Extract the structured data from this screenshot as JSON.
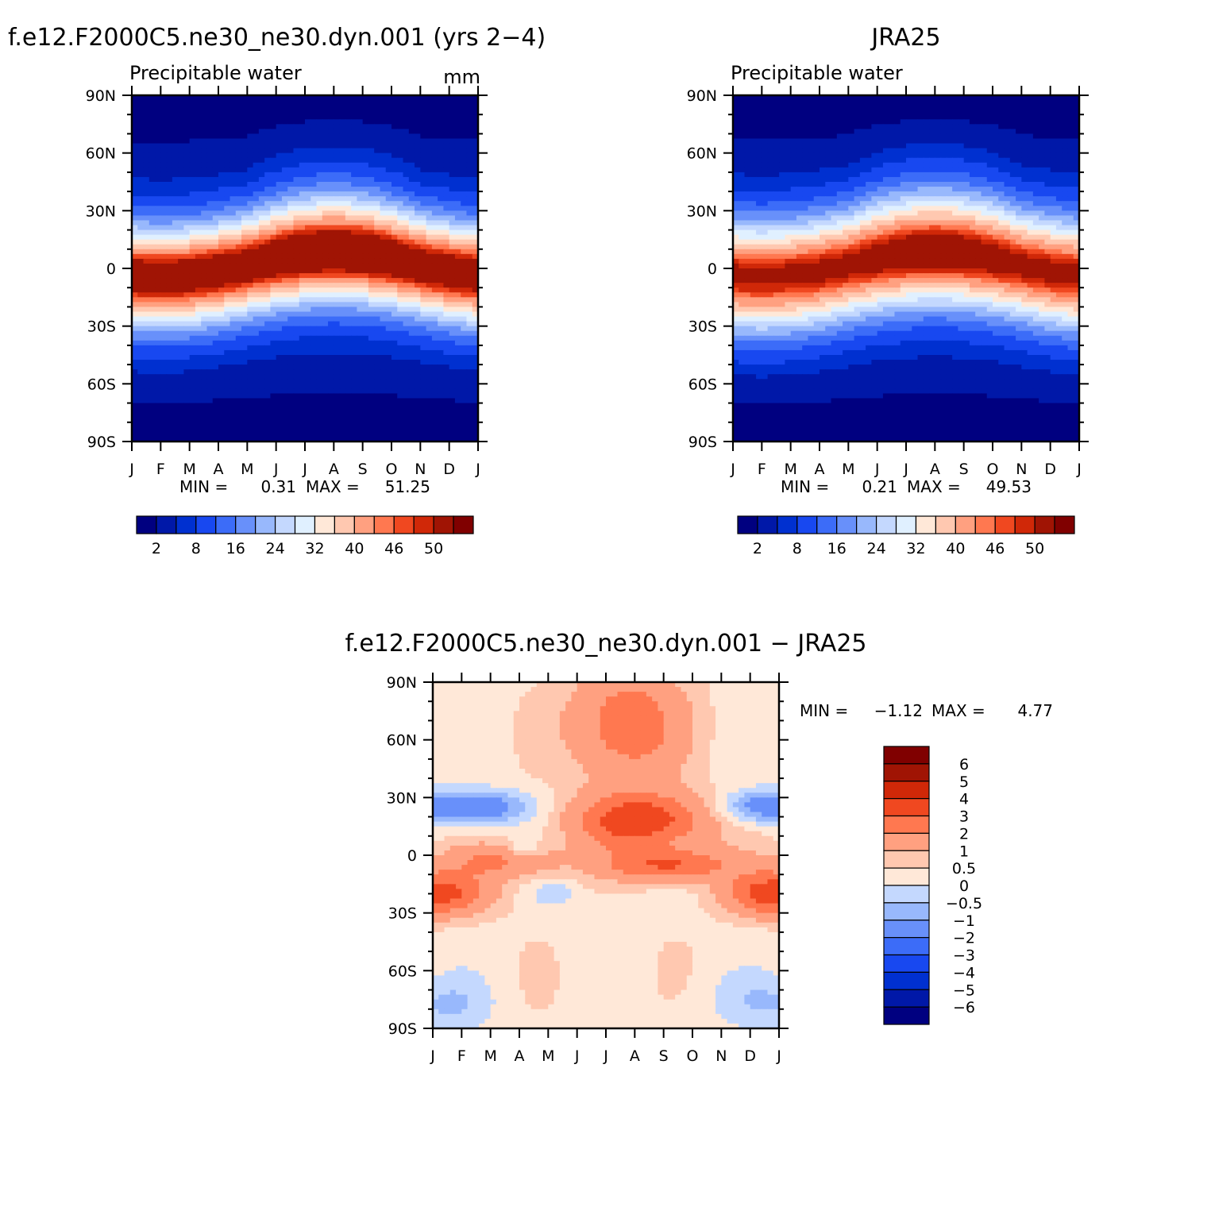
{
  "months": [
    "J",
    "F",
    "M",
    "A",
    "M",
    "J",
    "J",
    "A",
    "S",
    "O",
    "N",
    "D",
    "J"
  ],
  "lat_ticks": [
    "90N",
    "60N",
    "30N",
    "0",
    "30S",
    "60S",
    "90S"
  ],
  "lat_values": [
    90,
    60,
    30,
    0,
    -30,
    -60,
    -90
  ],
  "chart_data": [
    {
      "type": "heatmap",
      "title": "f.e12.F2000C5.ne30_ne30.dyn.001 (yrs 2−4)",
      "subtitle": "Precipitable water",
      "units": "mm",
      "min_label": "MIN =",
      "min_value": "0.31",
      "max_label": "MAX =",
      "max_value": "51.25",
      "x": "month",
      "y": "latitude",
      "ylim": [
        -90,
        90
      ],
      "itcz": {
        "base": 2,
        "amp": 8,
        "peak": 51.25,
        "width": 20
      },
      "levels": [
        2,
        5,
        8,
        12,
        16,
        20,
        24,
        28,
        32,
        36,
        40,
        44,
        46,
        48,
        50
      ],
      "colorbar_labels": [
        "2",
        "8",
        "16",
        "24",
        "32",
        "40",
        "46",
        "50"
      ],
      "colors": [
        "#000080",
        "#0018a8",
        "#0030d0",
        "#1848f0",
        "#3c6cf8",
        "#6890fa",
        "#98b8fc",
        "#c4d8fe",
        "#e0f0ff",
        "#ffe8d8",
        "#ffc8b0",
        "#ffa080",
        "#ff7850",
        "#f04820",
        "#d02808",
        "#a01404",
        "#800000"
      ]
    },
    {
      "type": "heatmap",
      "title": "JRA25",
      "subtitle": "Precipitable water",
      "min_label": "MIN =",
      "min_value": "0.21",
      "max_label": "MAX =",
      "max_value": "49.53",
      "x": "month",
      "y": "latitude",
      "ylim": [
        -90,
        90
      ],
      "itcz": {
        "base": 2,
        "amp": 8,
        "peak": 49.53,
        "width": 22
      },
      "levels": [
        2,
        5,
        8,
        12,
        16,
        20,
        24,
        28,
        32,
        36,
        40,
        44,
        46,
        48,
        50
      ],
      "colorbar_labels": [
        "2",
        "8",
        "16",
        "24",
        "32",
        "40",
        "46",
        "50"
      ],
      "colors": [
        "#000080",
        "#0018a8",
        "#0030d0",
        "#1848f0",
        "#3c6cf8",
        "#6890fa",
        "#98b8fc",
        "#c4d8fe",
        "#e0f0ff",
        "#ffe8d8",
        "#ffc8b0",
        "#ffa080",
        "#ff7850",
        "#f04820",
        "#d02808",
        "#a01404",
        "#800000"
      ]
    },
    {
      "type": "heatmap",
      "title": "f.e12.F2000C5.ne30_ne30.dyn.001 − JRA25",
      "min_label": "MIN =",
      "min_value": "−1.12",
      "max_label": "MAX =",
      "max_value": "4.77",
      "x": "month",
      "y": "latitude",
      "ylim": [
        -90,
        90
      ],
      "levels": [
        -6,
        -5,
        -4,
        -3,
        -2,
        -1,
        -0.5,
        0,
        0.5,
        1,
        2,
        3,
        4,
        5,
        6
      ],
      "colorbar_labels": [
        "6",
        "5",
        "4",
        "3",
        "2",
        "1",
        "0.5",
        "0",
        "−0.5",
        "−1",
        "−2",
        "−3",
        "−4",
        "−5",
        "−6"
      ],
      "colors": [
        "#000080",
        "#0018a8",
        "#0030d0",
        "#1848f0",
        "#3c6cf8",
        "#6890fa",
        "#98b8fc",
        "#c4d8fe",
        "#ffe8d8",
        "#ffc8b0",
        "#ffa080",
        "#ff7850",
        "#f04820",
        "#d02808",
        "#a01404",
        "#800000"
      ],
      "diff_features": [
        {
          "month": 7.2,
          "lat": 18,
          "sm": 1.6,
          "sl": 10,
          "amp": 3.5
        },
        {
          "month": 2.5,
          "lat": -3,
          "sm": 1.4,
          "sl": 6,
          "amp": 1.8
        },
        {
          "month": 8.2,
          "lat": -5,
          "sm": 1.5,
          "sl": 6,
          "amp": 2.8
        },
        {
          "month": 0.6,
          "lat": -20,
          "sm": 1.1,
          "sl": 8,
          "amp": 2.0
        },
        {
          "month": 11.4,
          "lat": -20,
          "sm": 1.0,
          "sl": 8,
          "amp": 2.0
        },
        {
          "month": 6.7,
          "lat": 68,
          "sm": 1.3,
          "sl": 20,
          "amp": 2.5
        },
        {
          "month": 1.6,
          "lat": 25,
          "sm": 1.3,
          "sl": 6,
          "amp": -2.0
        },
        {
          "month": 11.2,
          "lat": 25,
          "sm": 1.0,
          "sl": 6,
          "amp": -1.5
        },
        {
          "month": 3.1,
          "lat": 2,
          "sm": 0.4,
          "sl": 3,
          "amp": -1.0
        },
        {
          "month": 4.2,
          "lat": -20,
          "sm": 0.5,
          "sl": 4,
          "amp": -0.8
        },
        {
          "month": 0.8,
          "lat": -78,
          "sm": 1.0,
          "sl": 10,
          "amp": -0.6
        },
        {
          "month": 11.0,
          "lat": -76,
          "sm": 1.2,
          "sl": 10,
          "amp": -0.6
        }
      ]
    }
  ]
}
